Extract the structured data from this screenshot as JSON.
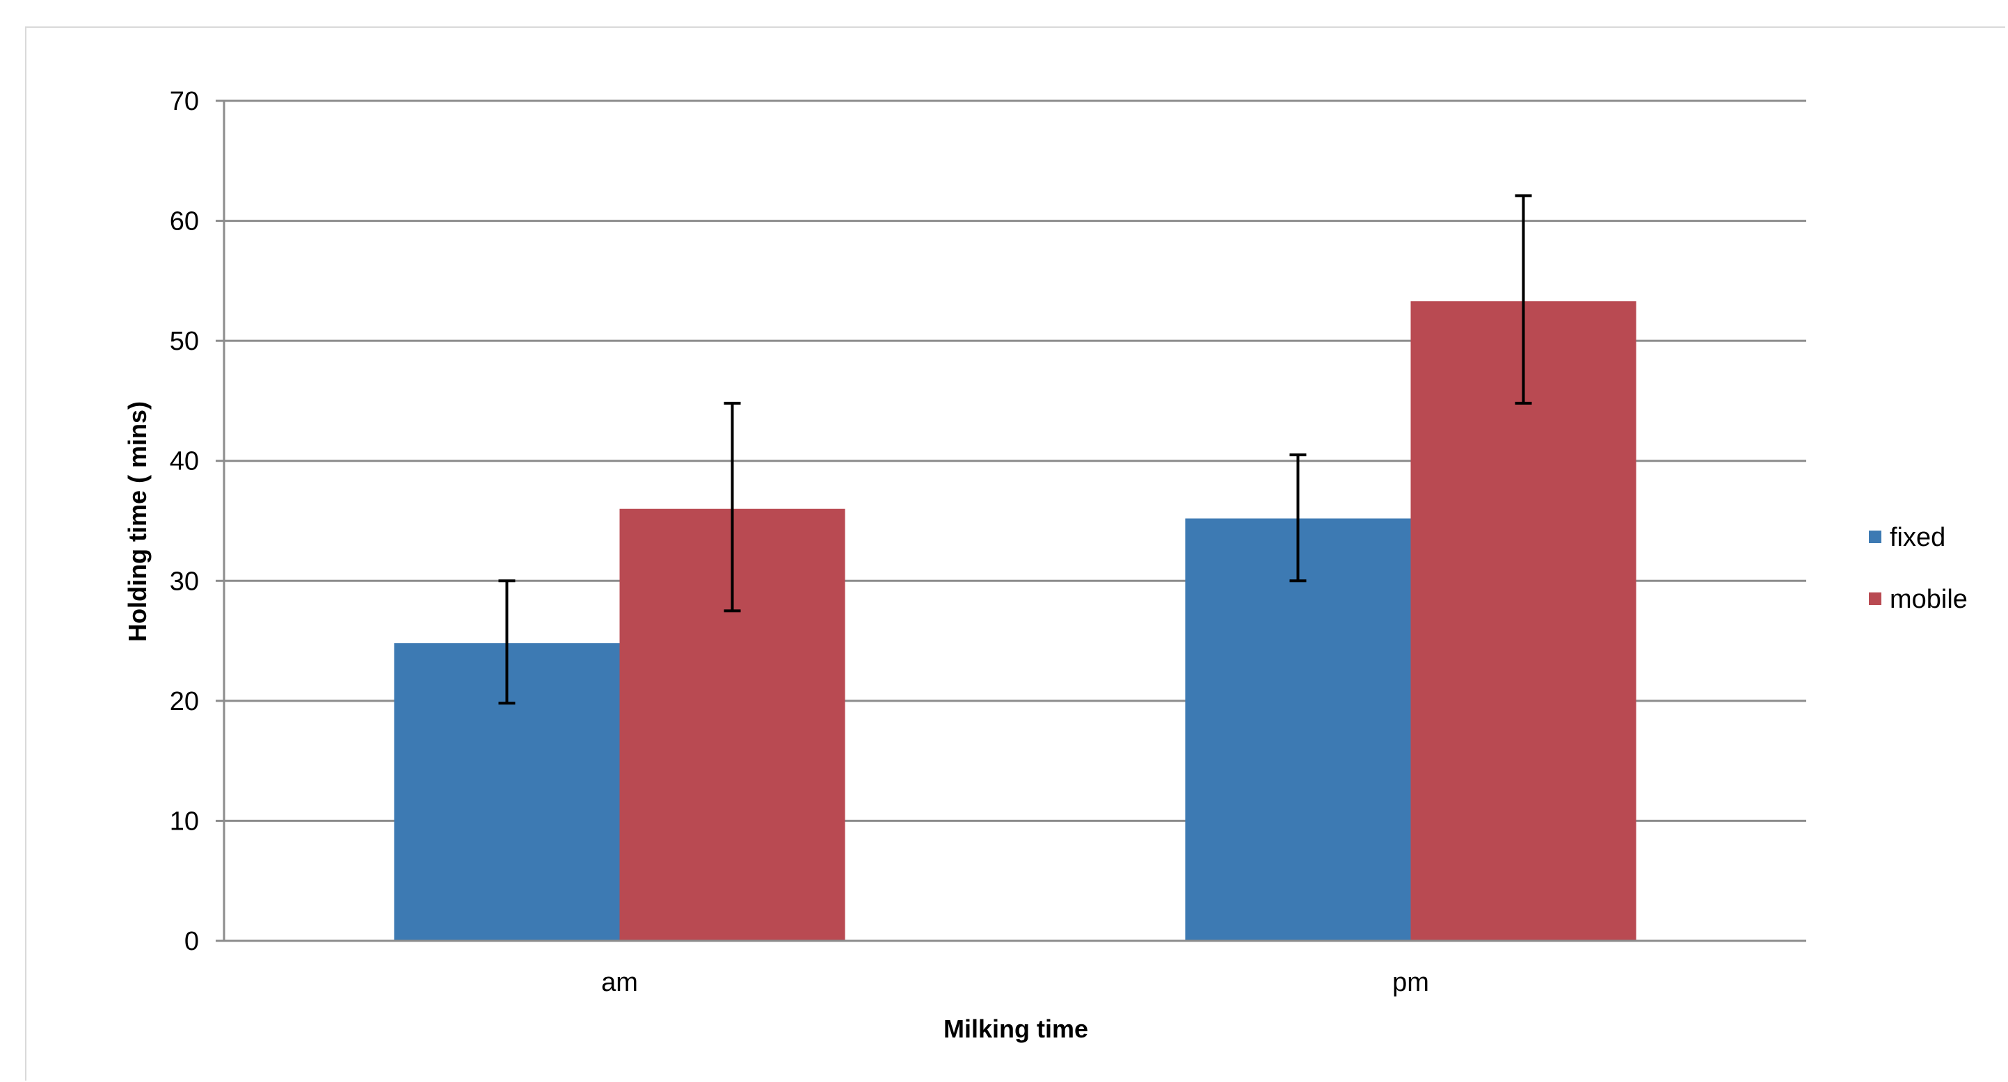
{
  "chart_data": {
    "type": "bar",
    "title": "",
    "xlabel": "Milking time",
    "ylabel": "Holding time  ( mins)",
    "categories": [
      "am",
      "pm"
    ],
    "series": [
      {
        "name": "fixed",
        "color": "#3d7ab3",
        "values": [
          24.8,
          35.2
        ],
        "error_low": [
          19.8,
          30.0
        ],
        "error_high": [
          30.0,
          40.5
        ]
      },
      {
        "name": "mobile",
        "color": "#b94a52",
        "values": [
          36.0,
          53.3
        ],
        "error_low": [
          27.5,
          44.8
        ],
        "error_high": [
          44.8,
          62.1
        ]
      }
    ],
    "ylim": [
      0,
      70
    ],
    "yticks": [
      0,
      10,
      20,
      30,
      40,
      50,
      60,
      70
    ],
    "grid": true,
    "legend_position": "right"
  }
}
